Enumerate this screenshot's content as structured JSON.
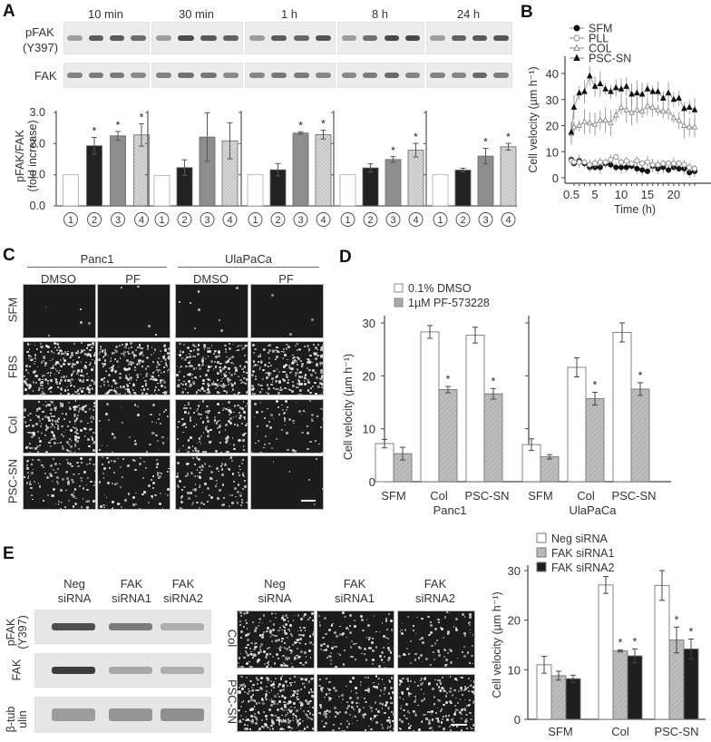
{
  "panels": {
    "A": {
      "letter": "A",
      "timepoints": [
        "10 min",
        "30 min",
        "1 h",
        "8 h",
        "24 h"
      ],
      "blot_labels": {
        "pfak_line1": "pFAK",
        "pfak_line2": "(Y397)",
        "fak": "FAK"
      }
    },
    "B": {
      "letter": "B"
    },
    "C": {
      "letter": "C",
      "cell_lines": [
        "Panc1",
        "UlaPaCa"
      ],
      "treatments": [
        "DMSO",
        "PF",
        "DMSO",
        "PF"
      ],
      "rows": [
        "SFM",
        "FBS",
        "Col",
        "PSC-SN"
      ]
    },
    "D": {
      "letter": "D"
    },
    "E": {
      "letter": "E",
      "blot_columns": [
        {
          "line1": "Neg",
          "line2": "siRNA"
        },
        {
          "line1": "FAK",
          "line2": "siRNA1"
        },
        {
          "line1": "FAK",
          "line2": "siRNA2"
        }
      ],
      "blot_rows": [
        {
          "line1": "pFAK",
          "line2": "(Y397)"
        },
        {
          "line1": "FAK",
          "line2": ""
        },
        {
          "line1": "β-tub",
          "line2": "ulin"
        }
      ],
      "micro_columns": [
        {
          "line1": "Neg",
          "line2": "siRNA"
        },
        {
          "line1": "FAK",
          "line2": "siRNA1"
        },
        {
          "line1": "FAK",
          "line2": "siRNA2"
        }
      ],
      "micro_rows": [
        "Col",
        "PSC-SN"
      ]
    }
  },
  "chart_data": [
    {
      "id": "A",
      "type": "bar",
      "title": "",
      "ylabel": "pFAK/FAK (fold increase)",
      "ylim": [
        0,
        3.0
      ],
      "yticks": [
        "0.0",
        "1.0",
        "2.0",
        "3.0"
      ],
      "categories": [
        "1",
        "2",
        "3",
        "4"
      ],
      "groups": [
        {
          "name": "10 min",
          "values": [
            1.0,
            1.93,
            2.25,
            2.28
          ],
          "errors": [
            0,
            0.27,
            0.14,
            0.36
          ],
          "significant": [
            false,
            true,
            true,
            true
          ]
        },
        {
          "name": "30 min",
          "values": [
            0.98,
            1.23,
            2.21,
            2.09
          ],
          "errors": [
            0,
            0.25,
            0.78,
            0.58
          ],
          "significant": [
            false,
            false,
            false,
            false
          ]
        },
        {
          "name": "1 h",
          "values": [
            1.0,
            1.16,
            2.34,
            2.29
          ],
          "errors": [
            0,
            0.2,
            0.04,
            0.14
          ],
          "significant": [
            false,
            false,
            true,
            true
          ]
        },
        {
          "name": "8 h",
          "values": [
            1.0,
            1.22,
            1.49,
            1.79
          ],
          "errors": [
            0,
            0.13,
            0.09,
            0.22
          ],
          "significant": [
            false,
            false,
            true,
            true
          ]
        },
        {
          "name": "24 h",
          "values": [
            1.0,
            1.15,
            1.6,
            1.9
          ],
          "errors": [
            0,
            0.06,
            0.25,
            0.11
          ],
          "significant": [
            false,
            false,
            true,
            true
          ]
        }
      ]
    },
    {
      "id": "B",
      "type": "line",
      "xlabel": "Time (h)",
      "ylabel": "Cell velocity (µm h⁻¹)",
      "xticks": [
        "0.5",
        "5",
        "10",
        "15",
        "20"
      ],
      "yticks": [
        "0",
        "10",
        "20",
        "30",
        "40"
      ],
      "ylim": [
        0,
        45
      ],
      "x": [
        0.5,
        1,
        2,
        3,
        4,
        5,
        6,
        7,
        8,
        9,
        10,
        11,
        12,
        13,
        14,
        15,
        16,
        17,
        18,
        19,
        20,
        21,
        22,
        23,
        24
      ],
      "legend": [
        "SFM",
        "PLL",
        "COL",
        "PSC-SN"
      ],
      "series": [
        {
          "name": "SFM",
          "marker": "filled-circle",
          "values": [
            7,
            5.5,
            6.5,
            5.5,
            4,
            4,
            4,
            5.5,
            5,
            4,
            4,
            4,
            4.5,
            3.5,
            3,
            2.5,
            4.5,
            3.5,
            4,
            3,
            4,
            3.5,
            3.5,
            2,
            2.5
          ]
        },
        {
          "name": "PLL",
          "marker": "open-circle",
          "values": [
            6.5,
            6,
            6,
            6,
            5,
            5.5,
            6,
            6,
            7,
            8,
            6,
            6.5,
            5.5,
            6.5,
            5.5,
            6,
            5,
            5,
            5.5,
            5.5,
            5.5,
            5.5,
            5,
            4,
            3.5
          ]
        },
        {
          "name": "COL",
          "marker": "open-triangle",
          "values": [
            17,
            19.5,
            20,
            21.5,
            21,
            20.5,
            22,
            22,
            21,
            24,
            27,
            26,
            25,
            26,
            25.5,
            27.5,
            27,
            26,
            25.5,
            25.5,
            23,
            22,
            20,
            19.5,
            19.5
          ]
        },
        {
          "name": "PSC-SN",
          "marker": "filled-triangle",
          "values": [
            17.5,
            27,
            32.5,
            33,
            39,
            35,
            36,
            34,
            33,
            34.5,
            34,
            35,
            32,
            32.5,
            32,
            34,
            33,
            33,
            30.5,
            32.5,
            30,
            30.5,
            26.5,
            27,
            26
          ]
        }
      ]
    },
    {
      "id": "D",
      "type": "bar",
      "ylabel": "Cell velocity (µm h⁻¹)",
      "ylim": [
        0,
        30
      ],
      "yticks": [
        "0",
        "10",
        "20",
        "30"
      ],
      "legend": [
        "0.1% DMSO",
        "1µM PF-573228"
      ],
      "groups": [
        {
          "name": "Panc1",
          "categories": [
            "SFM",
            "Col",
            "PSC-SN"
          ],
          "series": [
            {
              "name": "0.1% DMSO",
              "values": [
                7.2,
                28.3,
                27.7
              ],
              "errors": [
                0.8,
                1.2,
                1.5
              ]
            },
            {
              "name": "1µM PF-573228",
              "values": [
                5.3,
                17.4,
                16.6
              ],
              "errors": [
                1.2,
                0.6,
                1.0
              ],
              "significant": [
                false,
                true,
                true
              ]
            }
          ]
        },
        {
          "name": "UlaPaCa",
          "categories": [
            "SFM",
            "Col",
            "PSC-SN"
          ],
          "series": [
            {
              "name": "0.1% DMSO",
              "values": [
                7.0,
                21.6,
                28.2
              ],
              "errors": [
                1.1,
                1.8,
                1.8
              ]
            },
            {
              "name": "1µM PF-573228",
              "values": [
                4.7,
                15.7,
                17.5
              ],
              "errors": [
                0.4,
                1.2,
                1.2
              ],
              "significant": [
                false,
                true,
                true
              ]
            }
          ]
        }
      ]
    },
    {
      "id": "E",
      "type": "bar",
      "ylabel": "Cell velocity (µm h⁻¹)",
      "ylim": [
        0,
        30
      ],
      "yticks": [
        "0",
        "10",
        "20",
        "30"
      ],
      "categories": [
        "SFM",
        "Col",
        "PSC-SN"
      ],
      "legend": [
        "Neg siRNA",
        "FAK siRNA1",
        "FAK siRNA2"
      ],
      "series": [
        {
          "name": "Neg siRNA",
          "values": [
            11.0,
            27.1,
            27.0
          ],
          "errors": [
            1.7,
            1.7,
            3.0
          ],
          "significant": [
            false,
            false,
            false
          ]
        },
        {
          "name": "FAK siRNA1",
          "values": [
            8.8,
            13.8,
            16.0
          ],
          "errors": [
            0.9,
            0.2,
            2.6
          ],
          "significant": [
            false,
            true,
            true
          ]
        },
        {
          "name": "FAK siRNA2",
          "values": [
            8.2,
            12.8,
            14.2
          ],
          "errors": [
            0.7,
            1.4,
            2.0
          ],
          "significant": [
            false,
            true,
            true
          ]
        }
      ]
    }
  ]
}
